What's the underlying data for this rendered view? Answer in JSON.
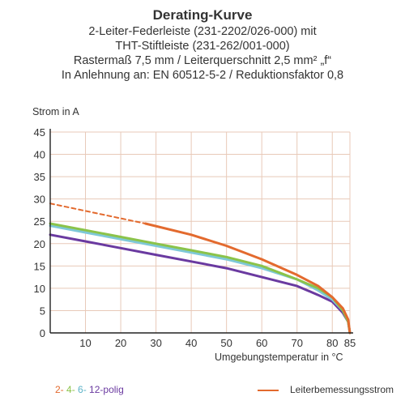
{
  "header": {
    "title": "Derating-Kurve",
    "lines": [
      "2-Leiter-Federleiste (231-2202/026-000) mit",
      "THT-Stiftleiste (231-262/001-000)",
      "Rastermaß 7,5 mm / Leiterquerschnitt 2,5 mm² „f“",
      "In Anlehnung an: EN 60512-5-2 / Reduktionsfaktor 0,8"
    ]
  },
  "legend": {
    "pole_2": "2-",
    "pole_4": "4-",
    "pole_6": "6-",
    "pole_12": "12-polig",
    "rated_current_label": "Leiterbemessungsstrom"
  },
  "colors": {
    "pole_2": "#e36a2e",
    "pole_4": "#8bc34a",
    "pole_6": "#7ec8d8",
    "pole_12": "#6a3aa0",
    "grid": "#e8c9b8",
    "axis": "#222222"
  },
  "chart_data": {
    "type": "line",
    "title": "Derating-Kurve",
    "xlabel": "Umgebungstemperatur in °C",
    "ylabel": "Strom in A",
    "xlim": [
      0,
      85
    ],
    "ylim": [
      0,
      45
    ],
    "x_ticks": [
      10,
      20,
      30,
      40,
      50,
      60,
      70,
      80,
      85
    ],
    "y_ticks": [
      0,
      5,
      10,
      15,
      20,
      25,
      30,
      35,
      40,
      45
    ],
    "grid": true,
    "legend_position": "bottom",
    "series": [
      {
        "name": "Leiterbemessungsstrom",
        "style": "dashed",
        "points": [
          [
            0,
            29
          ],
          [
            27,
            24.5
          ]
        ]
      },
      {
        "name": "2-",
        "points": [
          [
            27,
            24.5
          ],
          [
            40,
            22
          ],
          [
            50,
            19.5
          ],
          [
            60,
            16.5
          ],
          [
            70,
            13
          ],
          [
            76,
            10.5
          ],
          [
            80,
            8
          ],
          [
            83,
            5.5
          ],
          [
            84.5,
            3
          ],
          [
            85,
            0
          ]
        ]
      },
      {
        "name": "4-",
        "points": [
          [
            0,
            24.5
          ],
          [
            10,
            23
          ],
          [
            20,
            21.5
          ],
          [
            30,
            20
          ],
          [
            40,
            18.5
          ],
          [
            50,
            17
          ],
          [
            60,
            15
          ],
          [
            70,
            12
          ],
          [
            76,
            10
          ],
          [
            80,
            8
          ],
          [
            83,
            5
          ],
          [
            84.5,
            2.5
          ],
          [
            85,
            0
          ]
        ]
      },
      {
        "name": "6-",
        "points": [
          [
            0,
            24
          ],
          [
            10,
            22.5
          ],
          [
            20,
            21
          ],
          [
            30,
            19.5
          ],
          [
            40,
            18
          ],
          [
            50,
            16.5
          ],
          [
            60,
            14.5
          ],
          [
            70,
            12
          ],
          [
            76,
            9.5
          ],
          [
            80,
            7.5
          ],
          [
            83,
            5
          ],
          [
            84.5,
            2.5
          ],
          [
            85,
            0
          ]
        ]
      },
      {
        "name": "12-polig",
        "points": [
          [
            0,
            22
          ],
          [
            10,
            20.5
          ],
          [
            20,
            19
          ],
          [
            30,
            17.5
          ],
          [
            40,
            16
          ],
          [
            50,
            14.5
          ],
          [
            60,
            12.5
          ],
          [
            70,
            10.5
          ],
          [
            76,
            8.5
          ],
          [
            80,
            7
          ],
          [
            83,
            4.5
          ],
          [
            84.5,
            2.5
          ],
          [
            85,
            0
          ]
        ]
      }
    ]
  }
}
